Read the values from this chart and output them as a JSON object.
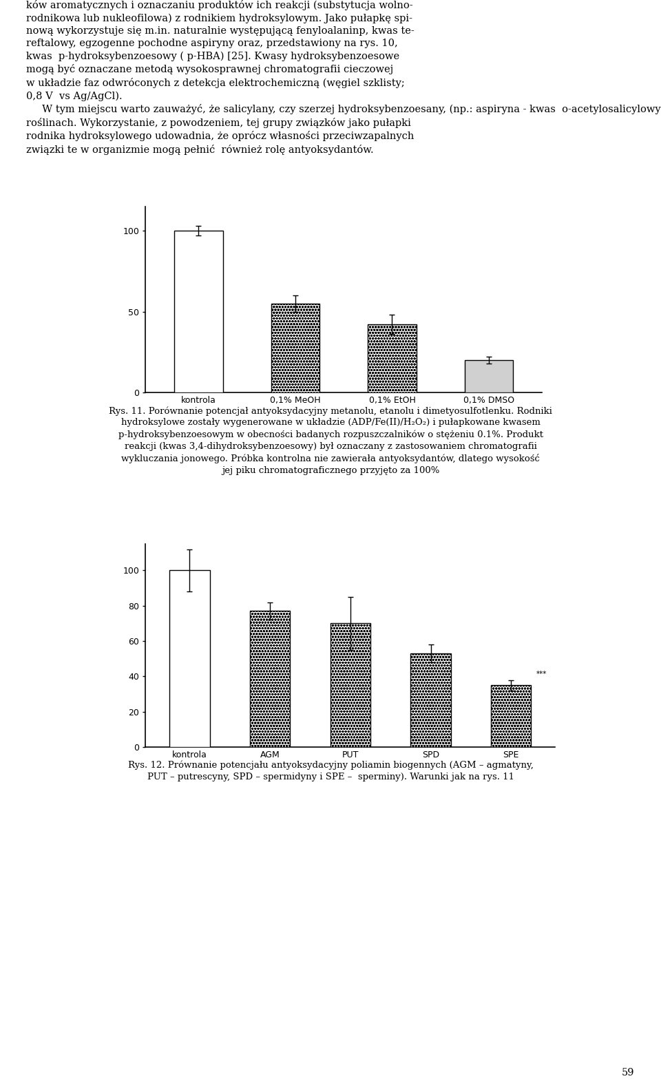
{
  "chart1": {
    "categories": [
      "kontrola",
      "0,1% MeOH",
      "0,1% EtOH",
      "0,1% DMSO"
    ],
    "values": [
      100,
      55,
      42,
      20
    ],
    "errors": [
      3,
      5,
      6,
      2
    ],
    "ylim": [
      0,
      115
    ],
    "yticks": [
      0,
      50,
      100
    ],
    "bar_width": 0.5
  },
  "chart2": {
    "categories": [
      "kontrola",
      "AGM",
      "PUT",
      "SPD",
      "SPE"
    ],
    "values": [
      100,
      77,
      70,
      53,
      35
    ],
    "errors": [
      12,
      5,
      15,
      5,
      3
    ],
    "ylim": [
      0,
      115
    ],
    "yticks": [
      0,
      20,
      40,
      60,
      80,
      100
    ],
    "bar_width": 0.5
  },
  "body_font_size": 10.5,
  "caption_font_size": 9.5,
  "tick_font_size": 9.0
}
